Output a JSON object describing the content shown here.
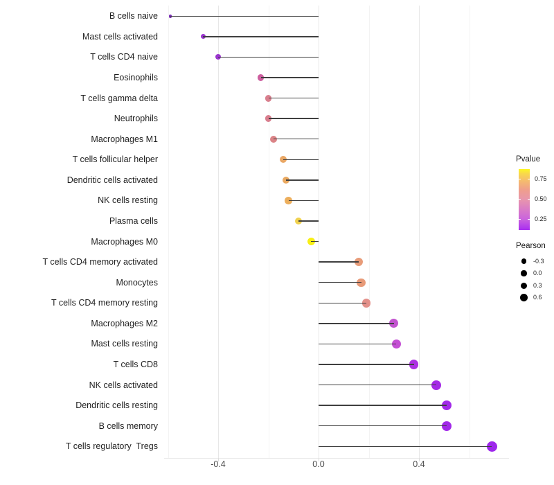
{
  "chart_data": {
    "type": "lollipop",
    "title": "",
    "xlabel": "",
    "ylabel": "",
    "grid": "vertical-only",
    "x_axis": {
      "range": [
        -0.63,
        0.77
      ],
      "ticks_major": [
        -0.4,
        0.0,
        0.4
      ],
      "tick_labels": [
        "-0.4",
        "0.0",
        "0.4"
      ],
      "ticks_minor": [
        -0.6,
        -0.2,
        0.2,
        0.6
      ]
    },
    "rows": [
      {
        "label": "B cells naive",
        "pearson": -0.59,
        "color": "#7a2fb5"
      },
      {
        "label": "Mast cells activated",
        "pearson": -0.46,
        "color": "#9934cd"
      },
      {
        "label": "T cells CD4 naive",
        "pearson": -0.4,
        "color": "#9a35ce"
      },
      {
        "label": "Eosinophils",
        "pearson": -0.23,
        "color": "#cd5f9f"
      },
      {
        "label": "T cells gamma delta",
        "pearson": -0.2,
        "color": "#d97f8e"
      },
      {
        "label": "Neutrophils",
        "pearson": -0.2,
        "color": "#d97e8e"
      },
      {
        "label": "Macrophages M1",
        "pearson": -0.18,
        "color": "#db8487"
      },
      {
        "label": "T cells follicular helper",
        "pearson": -0.14,
        "color": "#e9a765"
      },
      {
        "label": "Dendritic cells activated",
        "pearson": -0.13,
        "color": "#eaa961"
      },
      {
        "label": "NK cells resting",
        "pearson": -0.12,
        "color": "#ecae5c"
      },
      {
        "label": "Plasma cells",
        "pearson": -0.08,
        "color": "#f0d14e"
      },
      {
        "label": "Macrophages M0",
        "pearson": -0.03,
        "color": "#f8ef15"
      },
      {
        "label": "T cells CD4 memory activated",
        "pearson": 0.16,
        "color": "#e89c79"
      },
      {
        "label": "Monocytes",
        "pearson": 0.17,
        "color": "#e89a78"
      },
      {
        "label": "T cells CD4 memory resting",
        "pearson": 0.19,
        "color": "#e3908a"
      },
      {
        "label": "Macrophages M2",
        "pearson": 0.3,
        "color": "#c253cf"
      },
      {
        "label": "Mast cells resting",
        "pearson": 0.31,
        "color": "#c44fd4"
      },
      {
        "label": "T cells CD8",
        "pearson": 0.38,
        "color": "#ad2fe2"
      },
      {
        "label": "NK cells activated",
        "pearson": 0.47,
        "color": "#a52be6"
      },
      {
        "label": "Dendritic cells resting",
        "pearson": 0.51,
        "color": "#a229e9"
      },
      {
        "label": "B cells memory",
        "pearson": 0.51,
        "color": "#a229e9"
      },
      {
        "label": "T cells regulatory  Tregs",
        "pearson": 0.69,
        "color": "#9e27ec"
      }
    ],
    "legend_pvalue": {
      "title": "Pvalue",
      "tick_labels": [
        "0.75",
        "0.50",
        "0.25"
      ],
      "gradient_top_color": "#fdf723",
      "gradient_bottom_color": "#a92df0"
    },
    "legend_pearson": {
      "title": "Pearson",
      "item_labels": [
        "-0.3",
        "0.0",
        "0.3",
        "0.6"
      ]
    }
  }
}
